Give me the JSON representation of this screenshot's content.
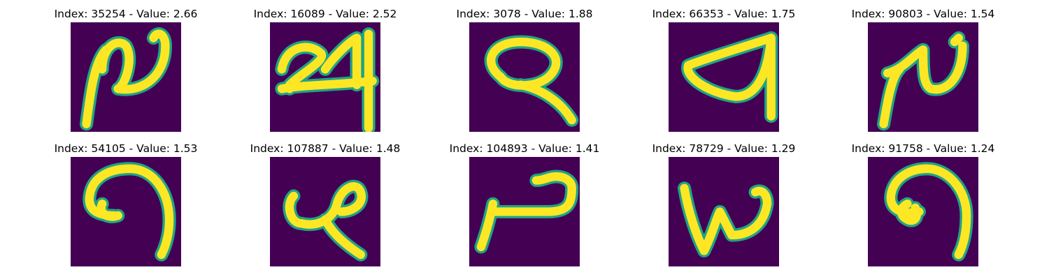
{
  "figure": {
    "background": "#ffffff",
    "image_background_color": "#440154",
    "stroke_color": "#fde725",
    "edge_color": "#21a386",
    "title_prefix": "Index: ",
    "title_separator": " - Value: "
  },
  "panels": [
    {
      "index": "35254",
      "value": "2.66",
      "depicts": "handwritten-glyph-loop-hook"
    },
    {
      "index": "16089",
      "value": "2.52",
      "depicts": "handwritten-glyph-24-like"
    },
    {
      "index": "3078",
      "value": "1.88",
      "depicts": "handwritten-glyph-loop-tail"
    },
    {
      "index": "66353",
      "value": "1.75",
      "depicts": "handwritten-glyph-open-wedge"
    },
    {
      "index": "90803",
      "value": "1.54",
      "depicts": "handwritten-glyph-loop-hook"
    },
    {
      "index": "54105",
      "value": "1.53",
      "depicts": "handwritten-glyph-curl"
    },
    {
      "index": "107887",
      "value": "1.48",
      "depicts": "handwritten-glyph-loop-stem"
    },
    {
      "index": "104893",
      "value": "1.41",
      "depicts": "handwritten-glyph-step"
    },
    {
      "index": "78729",
      "value": "1.29",
      "depicts": "handwritten-glyph-w"
    },
    {
      "index": "91758",
      "value": "1.24",
      "depicts": "handwritten-glyph-curl"
    }
  ]
}
